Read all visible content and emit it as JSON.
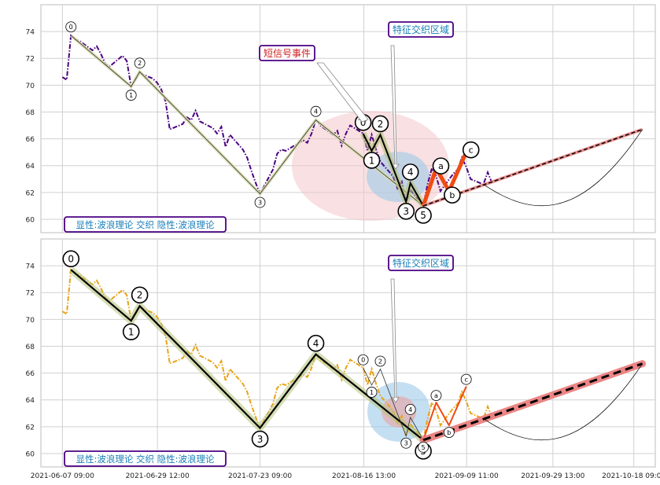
{
  "chart_data": [
    {
      "type": "line",
      "panel": "top",
      "ylim": [
        59,
        76
      ],
      "yticks": [
        60,
        62,
        64,
        66,
        68,
        70,
        72,
        74
      ],
      "price_color": "#4b0082",
      "price_style": "dash-dot",
      "series_price": [
        [
          "2021-06-07 09:00",
          70.6
        ],
        [
          "2021-06-08 09:00",
          70.4
        ],
        [
          "2021-06-09 09:00",
          73.7
        ],
        [
          "2021-06-10 09:00",
          73.4
        ],
        [
          "2021-06-11 09:00",
          73.3
        ],
        [
          "2021-06-14 09:00",
          72.6
        ],
        [
          "2021-06-15 09:00",
          72.9
        ],
        [
          "2021-06-16 09:00",
          72.3
        ],
        [
          "2021-06-17 09:00",
          71.6
        ],
        [
          "2021-06-18 09:00",
          71.4
        ],
        [
          "2021-06-21 09:00",
          72.2
        ],
        [
          "2021-06-22 09:00",
          71.8
        ],
        [
          "2021-06-23 09:00",
          69.9
        ],
        [
          "2021-06-24 09:00",
          70.4
        ],
        [
          "2021-06-25 09:00",
          70.9
        ],
        [
          "2021-06-28 09:00",
          70.5
        ],
        [
          "2021-06-29 09:00",
          70.2
        ],
        [
          "2021-06-30 09:00",
          69.7
        ],
        [
          "2021-07-01 09:00",
          68.8
        ],
        [
          "2021-07-02 09:00",
          66.7
        ],
        [
          "2021-07-05 09:00",
          67.1
        ],
        [
          "2021-07-06 09:00",
          67.6
        ],
        [
          "2021-07-07 09:00",
          67.4
        ],
        [
          "2021-07-08 09:00",
          68.1
        ],
        [
          "2021-07-09 09:00",
          67.3
        ],
        [
          "2021-07-12 09:00",
          66.8
        ],
        [
          "2021-07-13 09:00",
          66.4
        ],
        [
          "2021-07-14 09:00",
          66.9
        ],
        [
          "2021-07-15 09:00",
          65.4
        ],
        [
          "2021-07-16 09:00",
          66.3
        ],
        [
          "2021-07-19 09:00",
          65.2
        ],
        [
          "2021-07-20 09:00",
          64.6
        ],
        [
          "2021-07-21 09:00",
          63.6
        ],
        [
          "2021-07-22 09:00",
          62.7
        ],
        [
          "2021-07-23 09:00",
          61.9
        ],
        [
          "2021-07-26 09:00",
          63.7
        ],
        [
          "2021-07-27 09:00",
          64.9
        ],
        [
          "2021-07-28 09:00",
          65.2
        ],
        [
          "2021-07-29 09:00",
          65.1
        ],
        [
          "2021-07-30 09:00",
          65.3
        ],
        [
          "2021-08-02 09:00",
          65.9
        ],
        [
          "2021-08-03 09:00",
          65.7
        ],
        [
          "2021-08-04 09:00",
          66.4
        ],
        [
          "2021-08-05 09:00",
          67.4
        ],
        [
          "2021-08-06 09:00",
          67.0
        ],
        [
          "2021-08-09 09:00",
          66.3
        ],
        [
          "2021-08-10 09:00",
          66.6
        ],
        [
          "2021-08-11 09:00",
          65.5
        ],
        [
          "2021-08-12 09:00",
          66.4
        ],
        [
          "2021-08-13 09:00",
          67.0
        ],
        [
          "2021-08-16 09:00",
          66.4
        ],
        [
          "2021-08-17 09:00",
          65.1
        ],
        [
          "2021-08-18 09:00",
          66.3
        ],
        [
          "2021-08-19 09:00",
          65.2
        ],
        [
          "2021-08-20 09:00",
          64.3
        ],
        [
          "2021-08-23 09:00",
          63.2
        ],
        [
          "2021-08-24 09:00",
          62.3
        ],
        [
          "2021-08-25 09:00",
          62.8
        ],
        [
          "2021-08-26 09:00",
          61.3
        ],
        [
          "2021-08-27 09:00",
          62.2
        ],
        [
          "2021-08-30 09:00",
          61.0
        ],
        [
          "2021-08-31 09:00",
          62.6
        ],
        [
          "2021-09-01 09:00",
          63.8
        ],
        [
          "2021-09-02 09:00",
          63.2
        ],
        [
          "2021-09-03 09:00",
          62.1
        ],
        [
          "2021-09-06 09:00",
          63.4
        ],
        [
          "2021-09-07 09:00",
          63.7
        ],
        [
          "2021-09-08 09:00",
          64.6
        ],
        [
          "2021-09-09 09:00",
          63.9
        ],
        [
          "2021-09-10 09:00",
          63.0
        ],
        [
          "2021-09-13 09:00",
          62.6
        ],
        [
          "2021-09-14 09:00",
          63.5
        ],
        [
          "2021-09-15 09:00",
          62.7
        ]
      ],
      "wave_main": {
        "x": [
          "2021-06-09 09:00",
          "2021-06-23 09:00",
          "2021-06-25 09:00",
          "2021-07-23 09:00",
          "2021-08-05 09:00",
          "2021-08-30 09:00"
        ],
        "y": [
          73.7,
          69.9,
          71.0,
          61.9,
          67.4,
          61.0
        ],
        "labels": [
          "0",
          "1",
          "2",
          "3",
          "4",
          "5"
        ]
      },
      "wave_sub": {
        "x": [
          "2021-08-16 09:00",
          "2021-08-18 09:00",
          "2021-08-20 09:00",
          "2021-08-26 09:00",
          "2021-08-27 09:00",
          "2021-08-30 09:00"
        ],
        "y": [
          66.4,
          65.1,
          66.3,
          61.3,
          62.7,
          61.0
        ],
        "labels": [
          "0",
          "1",
          "2",
          "3",
          "4",
          "5"
        ]
      },
      "wave_abc": {
        "x": [
          "2021-08-30 09:00",
          "2021-09-02 09:00",
          "2021-09-05 09:00",
          "2021-09-09 09:00"
        ],
        "y": [
          61.0,
          63.8,
          62.1,
          65.0
        ],
        "labels": [
          "",
          "a",
          "b",
          "c"
        ]
      },
      "projection": {
        "x": [
          "2021-08-30 09:00",
          "2021-10-20 09:00"
        ],
        "y": [
          61.0,
          66.7
        ]
      },
      "annotations": {
        "short_signal": "短信号事件",
        "intersect": "特征交织区域",
        "bottom_left": "显性:波浪理论 交织 隐性:波浪理论"
      }
    },
    {
      "type": "line",
      "panel": "bottom",
      "ylim": [
        59,
        76
      ],
      "yticks": [
        60,
        62,
        64,
        66,
        68,
        70,
        72,
        74
      ],
      "price_color": "#e8a317",
      "price_style": "dash-dot",
      "wave_main": {
        "x": [
          "2021-06-09 09:00",
          "2021-06-23 09:00",
          "2021-06-25 09:00",
          "2021-07-23 09:00",
          "2021-08-05 09:00",
          "2021-08-30 09:00"
        ],
        "y": [
          73.7,
          69.9,
          71.0,
          61.9,
          67.4,
          61.0
        ],
        "labels": [
          "0",
          "1",
          "2",
          "3",
          "4",
          "5"
        ]
      },
      "wave_sub": {
        "x": [
          "2021-08-16 09:00",
          "2021-08-18 09:00",
          "2021-08-20 09:00",
          "2021-08-26 09:00",
          "2021-08-27 09:00",
          "2021-08-30 09:00"
        ],
        "y": [
          66.4,
          65.1,
          66.3,
          61.3,
          62.7,
          61.0
        ],
        "labels": [
          "0",
          "1",
          "2",
          "3",
          "4",
          "5"
        ]
      },
      "wave_abc": {
        "x": [
          "2021-08-30 09:00",
          "2021-09-02 09:00",
          "2021-09-05 09:00",
          "2021-09-09 09:00"
        ],
        "y": [
          61.0,
          63.8,
          62.1,
          65.0
        ],
        "labels": [
          "",
          "a",
          "b",
          "c"
        ]
      },
      "projection": {
        "x": [
          "2021-08-30 09:00",
          "2021-10-20 09:00"
        ],
        "y": [
          61.0,
          66.7
        ]
      },
      "annotations": {
        "intersect": "特征交织区域",
        "bottom_left": "显性:波浪理论 交织 隐性:波浪理论"
      }
    }
  ],
  "x_axis": {
    "range": [
      "2021-06-02 09:00",
      "2021-10-23 09:00"
    ],
    "ticks": [
      "2021-06-07 09:00",
      "2021-06-29 12:00",
      "2021-07-23 09:00",
      "2021-08-16 13:00",
      "2021-09-09 11:00",
      "2021-09-29 13:00",
      "2021-10-18 09:00"
    ]
  }
}
